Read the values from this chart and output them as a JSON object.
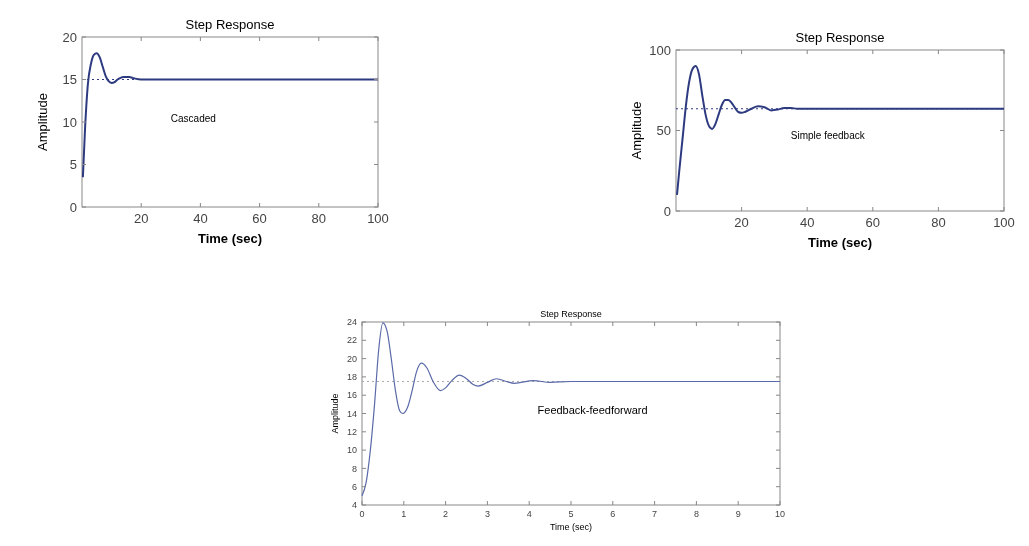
{
  "chart_data": [
    {
      "type": "line",
      "title": "Step Response",
      "xlabel": "Time (sec)",
      "ylabel": "Amplitude",
      "annotations": [
        "Cascaded"
      ],
      "xlim": [
        0,
        100
      ],
      "ylim": [
        0,
        20
      ],
      "xticks": [
        20,
        40,
        60,
        80,
        100
      ],
      "yticks": [
        0,
        5,
        10,
        15,
        20
      ],
      "ref_lines": [
        {
          "axis": "y",
          "value": 15,
          "line_style": "dotted",
          "color": "#2e3a80"
        }
      ],
      "series": [
        {
          "color": "#2e3a80",
          "x": [
            0.3,
            1,
            2,
            3,
            4,
            5,
            6,
            7,
            8,
            9,
            10,
            11,
            12,
            13,
            14,
            15,
            16,
            17,
            18,
            20,
            100
          ],
          "values": [
            3.5,
            9,
            14.5,
            16.8,
            17.9,
            18.1,
            17.6,
            16.5,
            15.4,
            14.8,
            14.6,
            14.7,
            15,
            15.2,
            15.3,
            15.3,
            15.3,
            15.2,
            15.1,
            15,
            15
          ]
        }
      ]
    },
    {
      "type": "line",
      "title": "Step Response",
      "xlabel": "Time (sec)",
      "ylabel": "Amplitude",
      "annotations": [
        "Simple feedback"
      ],
      "xlim": [
        0,
        100
      ],
      "ylim": [
        0,
        100
      ],
      "xticks": [
        20,
        40,
        60,
        80,
        100
      ],
      "yticks": [
        0,
        50,
        100
      ],
      "ref_lines": [
        {
          "axis": "y",
          "value": 63.5,
          "line_style": "dotted",
          "color": "#2e3a80"
        }
      ],
      "series": [
        {
          "color": "#2e3a80",
          "x": [
            0.3,
            1,
            2,
            3,
            4,
            5,
            6,
            7,
            8,
            9,
            10,
            11,
            12,
            13,
            14,
            15,
            16,
            17,
            18,
            19,
            20,
            21,
            23,
            25,
            27,
            29,
            31,
            33,
            35,
            37,
            100
          ],
          "values": [
            10,
            25,
            45,
            65,
            80,
            88,
            90,
            85,
            72,
            60,
            53,
            51,
            54,
            60,
            66,
            69,
            69,
            67,
            64,
            61.5,
            61,
            61.5,
            63.5,
            65,
            64.5,
            62.5,
            63,
            64,
            64,
            63.5,
            63.5
          ]
        }
      ]
    },
    {
      "type": "line",
      "title": "Step Response",
      "xlabel": "Time (sec)",
      "ylabel": "Amplitude",
      "annotations": [
        "Feedback-feedforward"
      ],
      "xlim": [
        0,
        10
      ],
      "ylim": [
        4,
        24
      ],
      "xticks": [
        0,
        1,
        2,
        3,
        4,
        5,
        6,
        7,
        8,
        9,
        10
      ],
      "yticks": [
        4,
        6,
        8,
        10,
        12,
        14,
        16,
        18,
        20,
        22,
        24
      ],
      "ref_lines": [
        {
          "axis": "y",
          "value": 17.5,
          "line_style": "dotted",
          "color": "#aaaaaa"
        }
      ],
      "series": [
        {
          "color": "#5a6aa8",
          "x": [
            0,
            0.1,
            0.2,
            0.3,
            0.4,
            0.5,
            0.6,
            0.7,
            0.8,
            0.9,
            0.97,
            1.1,
            1.2,
            1.3,
            1.42,
            1.55,
            1.7,
            1.88,
            2.0,
            2.15,
            2.33,
            2.5,
            2.65,
            2.78,
            3.0,
            3.22,
            3.45,
            3.65,
            4.1,
            4.5,
            5,
            10
          ],
          "values": [
            5,
            6.5,
            10,
            15,
            21,
            23.9,
            23,
            20,
            16.5,
            14.3,
            14,
            14.8,
            16.5,
            18.5,
            19.5,
            19,
            17.5,
            16.5,
            16.8,
            17.6,
            18.2,
            17.8,
            17.2,
            17,
            17.4,
            17.8,
            17.5,
            17.3,
            17.6,
            17.4,
            17.5,
            17.5
          ]
        }
      ]
    }
  ]
}
